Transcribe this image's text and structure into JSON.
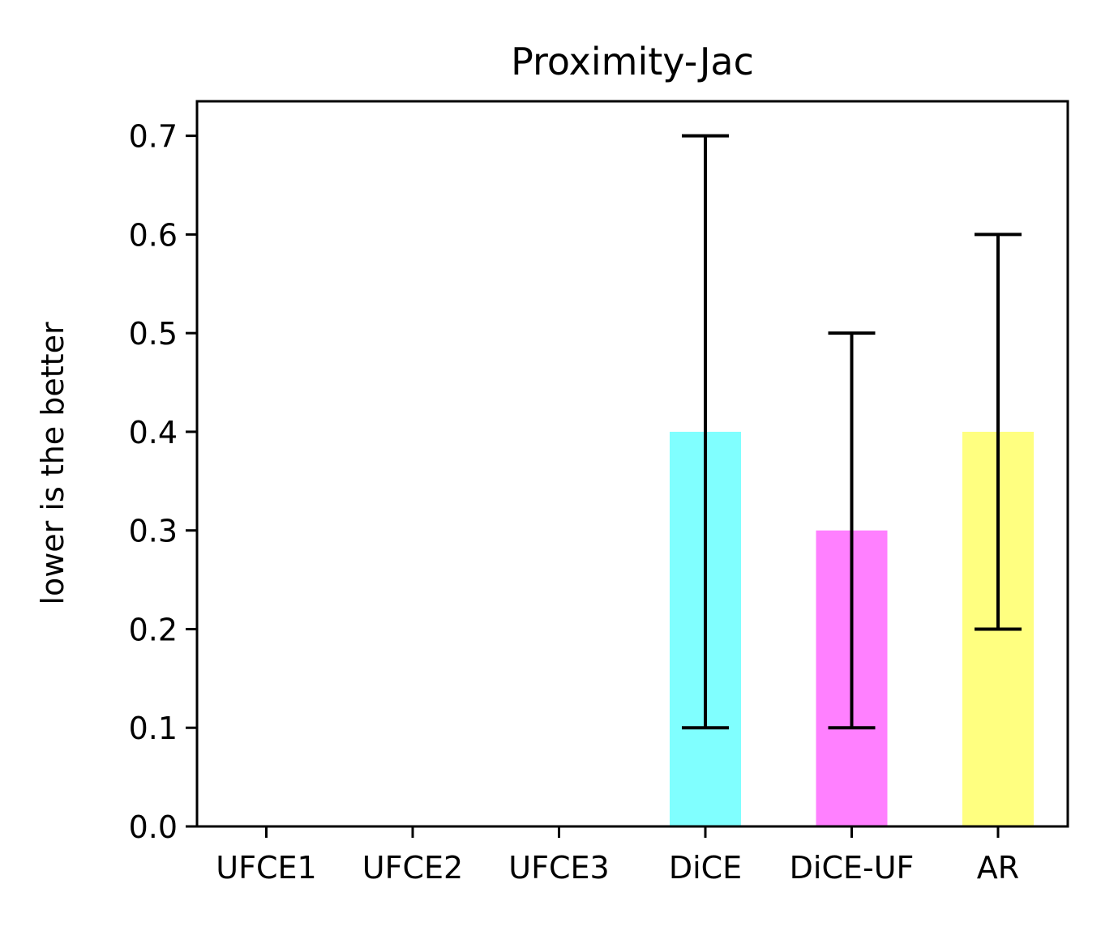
{
  "chart_data": {
    "type": "bar",
    "title": "Proximity-Jac",
    "xlabel": "",
    "ylabel": "lower is the better",
    "categories": [
      "UFCE1",
      "UFCE2",
      "UFCE3",
      "DiCE",
      "DiCE-UF",
      "AR"
    ],
    "values": [
      0.0,
      0.0,
      0.0,
      0.4,
      0.3,
      0.4
    ],
    "error_low": [
      0.0,
      0.0,
      0.0,
      0.1,
      0.1,
      0.2
    ],
    "error_high": [
      0.0,
      0.0,
      0.0,
      0.7,
      0.5,
      0.6
    ],
    "colors": [
      "#80ffff",
      "#80ffff",
      "#80ffff",
      "#80ffff",
      "#ff80ff",
      "#ffff80"
    ],
    "ylim": [
      0,
      0.735
    ],
    "yticks": [
      "0.0",
      "0.1",
      "0.2",
      "0.3",
      "0.4",
      "0.5",
      "0.6",
      "0.7"
    ],
    "ytick_values": [
      0.0,
      0.1,
      0.2,
      0.3,
      0.4,
      0.5,
      0.6,
      0.7
    ],
    "grid": false
  }
}
